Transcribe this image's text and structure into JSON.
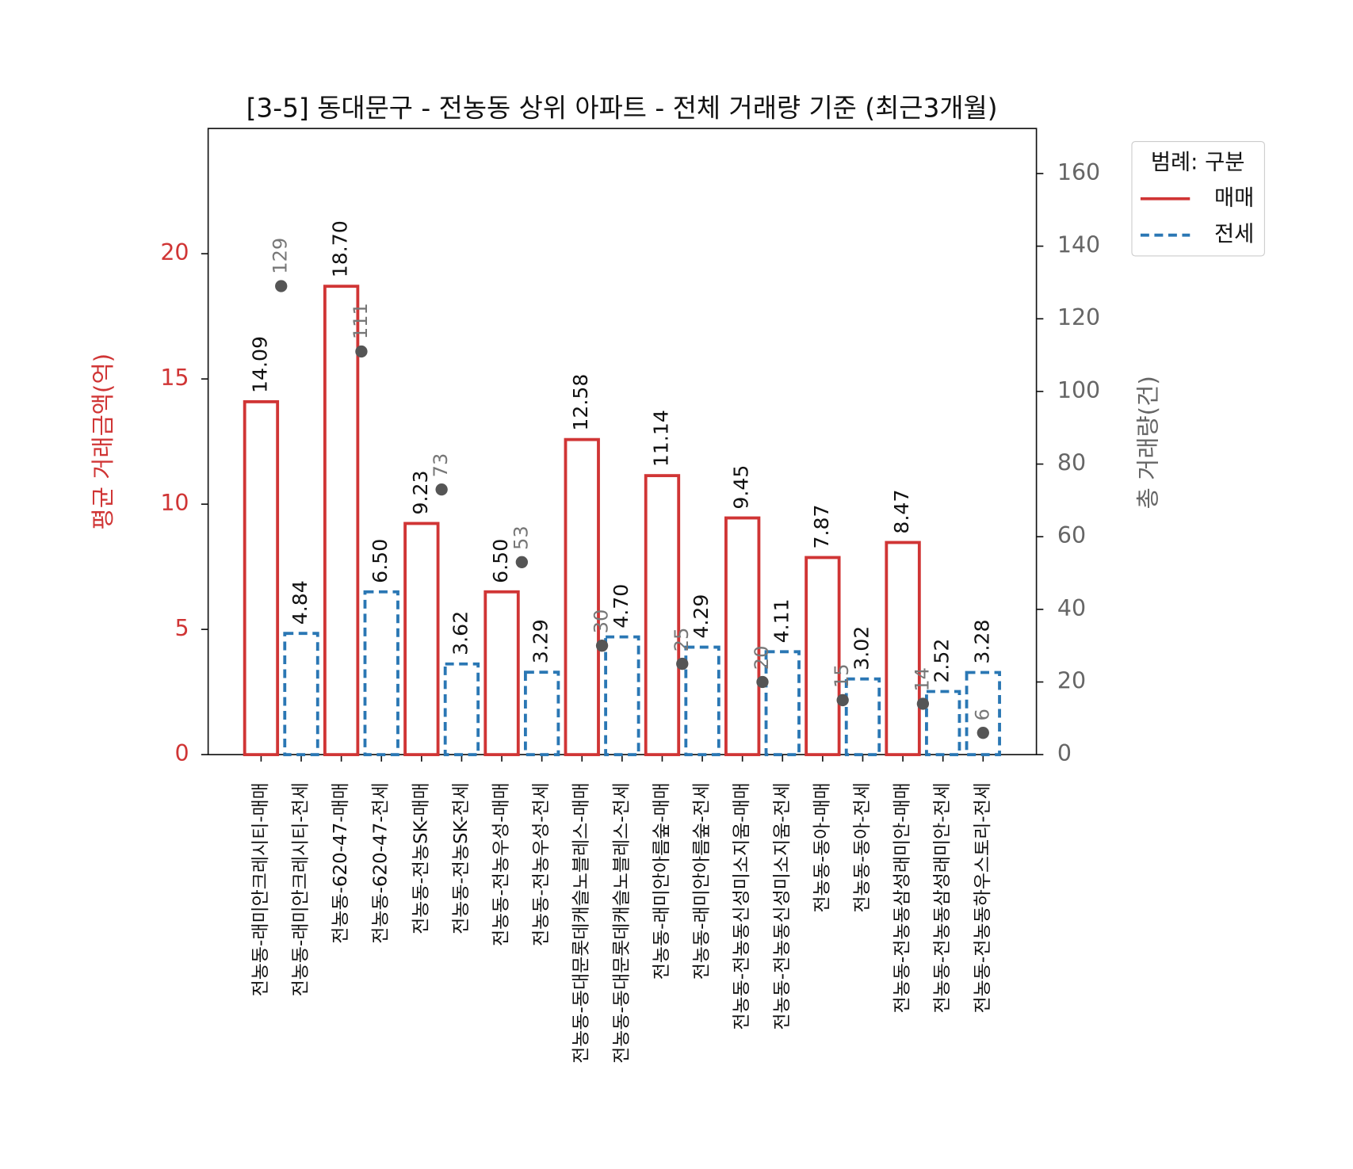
{
  "chart_data": {
    "type": "bar",
    "title": "[3-5] 동대문구 - 전농동 상위 아파트 - 전체 거래량 기준 (최근3개월)",
    "y_label": "평균 거래금액(억)",
    "y2_label": "총 거래량(건)",
    "legend_title": "범례: 구분",
    "legend": "upper right outside",
    "categories": [
      "전농동-래미안크레시티-매매",
      "전농동-래미안크레시티-전세",
      "전농동-620-47-매매",
      "전농동-620-47-전세",
      "전농동-전농SK-매매",
      "전농동-전농SK-전세",
      "전농동-전농우성-매매",
      "전농동-전농우성-전세",
      "전농동-동대문롯데캐슬노블레스-매매",
      "전농동-동대문롯데캐슬노블레스-전세",
      "전농동-래미안아름숲-매매",
      "전농동-래미안아름숲-전세",
      "전농동-전농동신성미소지움-매매",
      "전농동-전농동신성미소지움-전세",
      "전농동-동아-매매",
      "전농동-동아-전세",
      "전농동-전농동삼성래미안-매매",
      "전농동-전농동삼성래미안-전세",
      "전농동-전농동하우스토리-전세"
    ],
    "series": [
      {
        "name": "매매",
        "color": "#d03535",
        "dash": false,
        "values": [
          14.09,
          null,
          18.7,
          null,
          9.23,
          null,
          6.5,
          null,
          12.58,
          null,
          11.14,
          null,
          9.45,
          null,
          7.87,
          null,
          8.47,
          null,
          null
        ],
        "value_labels": [
          "14.09",
          null,
          "18.70",
          null,
          "9.23",
          null,
          "6.50",
          null,
          "12.58",
          null,
          "11.14",
          null,
          "9.45",
          null,
          "7.87",
          null,
          "8.47",
          null,
          null
        ]
      },
      {
        "name": "전세",
        "color": "#2a77b4",
        "dash": true,
        "values": [
          null,
          4.84,
          null,
          6.5,
          null,
          3.62,
          null,
          3.29,
          null,
          4.7,
          null,
          4.29,
          null,
          4.11,
          null,
          3.02,
          null,
          2.52,
          3.28
        ],
        "value_labels": [
          null,
          "4.84",
          null,
          "6.50",
          null,
          "3.62",
          null,
          "3.29",
          null,
          "4.70",
          null,
          "4.29",
          null,
          "4.11",
          null,
          "3.02",
          null,
          "2.52",
          "3.28"
        ]
      },
      {
        "axis": "y2",
        "color": "#555555",
        "values": [
          129,
          null,
          111,
          null,
          73,
          null,
          53,
          null,
          30,
          null,
          25,
          null,
          20,
          null,
          15,
          null,
          14,
          null,
          6
        ]
      }
    ],
    "ylim": [
      0,
      25
    ],
    "yticks": [
      0,
      5,
      10,
      15,
      20
    ],
    "y2lim": [
      0,
      172.4
    ],
    "y2ticks": [
      0,
      20,
      40,
      60,
      80,
      100,
      120,
      140,
      160
    ],
    "y_color": "#d03535",
    "y2_color": "#666666"
  }
}
